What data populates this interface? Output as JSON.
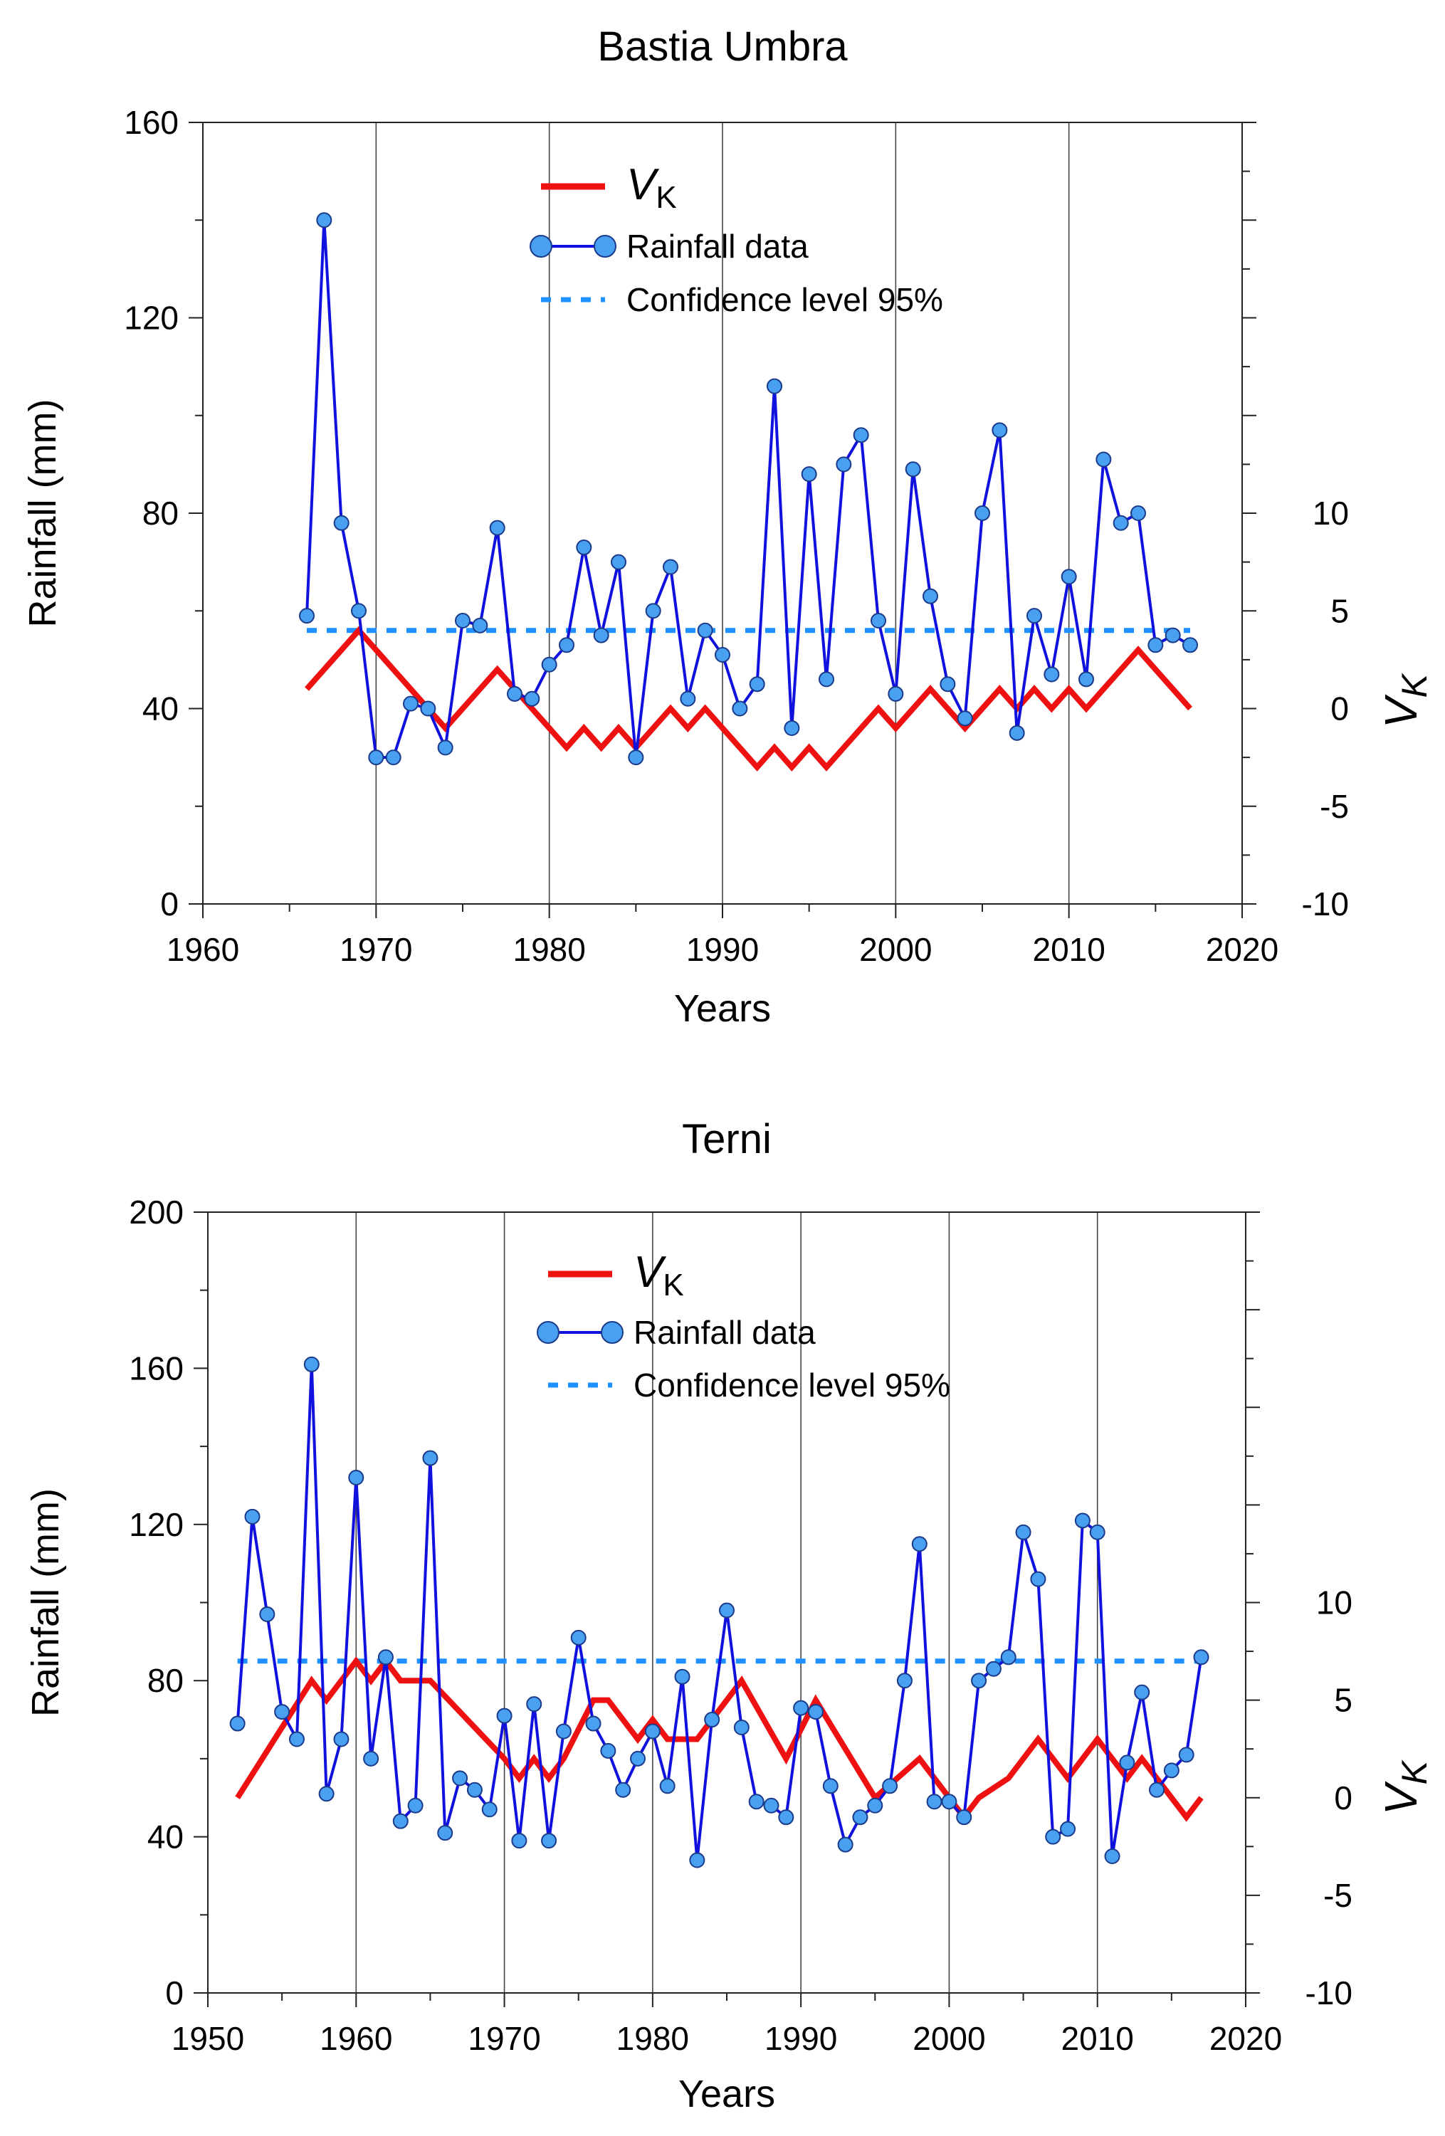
{
  "chart_data": [
    {
      "type": "line",
      "title": "Bastia Umbra",
      "xlabel": "Years",
      "ylabel": "Rainfall (mm)",
      "y2label": "V_K",
      "xlim": [
        1960,
        2020
      ],
      "ylim": [
        0,
        160
      ],
      "y2lim": [
        -10,
        30
      ],
      "xticks": [
        1960,
        1970,
        1980,
        1990,
        2000,
        2010,
        2020
      ],
      "yticks": [
        0,
        40,
        80,
        120,
        160
      ],
      "y2ticks": [
        -10,
        -5,
        0,
        5,
        10
      ],
      "legend": {
        "vk_main": "V",
        "vk_sub": "K",
        "rain": "Rainfall data",
        "conf": "Confidence level 95%",
        "position": "top-center"
      },
      "colors": {
        "rain": "#1111dd",
        "marker": "#4aa0f0",
        "vk": "#ee1111",
        "conf": "#1e90ff"
      },
      "confidence_level": 4,
      "rainfall": {
        "x": [
          1966,
          1967,
          1968,
          1969,
          1970,
          1971,
          1972,
          1973,
          1974,
          1975,
          1976,
          1977,
          1978,
          1979,
          1980,
          1981,
          1982,
          1983,
          1984,
          1985,
          1986,
          1987,
          1988,
          1989,
          1990,
          1991,
          1992,
          1993,
          1994,
          1995,
          1996,
          1997,
          1998,
          1999,
          2000,
          2001,
          2002,
          2003,
          2004,
          2005,
          2006,
          2007,
          2008,
          2009,
          2010,
          2011,
          2012,
          2013,
          2014,
          2015,
          2016,
          2017
        ],
        "y": [
          59,
          140,
          78,
          60,
          30,
          30,
          41,
          40,
          32,
          58,
          57,
          77,
          43,
          42,
          49,
          53,
          73,
          55,
          70,
          30,
          60,
          69,
          42,
          56,
          51,
          40,
          45,
          106,
          36,
          88,
          46,
          90,
          96,
          58,
          43,
          89,
          63,
          45,
          38,
          80,
          97,
          35,
          59,
          47,
          67,
          46,
          91,
          78,
          80,
          53,
          55,
          53
        ]
      },
      "vk": {
        "x": [
          1966,
          1969,
          1974,
          1977,
          1981,
          1982,
          1983,
          1984,
          1985,
          1987,
          1988,
          1989,
          1992,
          1993,
          1994,
          1995,
          1996,
          1999,
          2000,
          2002,
          2004,
          2006,
          2007,
          2008,
          2009,
          2010,
          2011,
          2014,
          2017
        ],
        "y": [
          1,
          4,
          -1,
          2,
          -2,
          -1,
          -2,
          -1,
          -2,
          0,
          -1,
          0,
          -3,
          -2,
          -3,
          -2,
          -3,
          0,
          -1,
          1,
          -1,
          1,
          0,
          1,
          0,
          1,
          0,
          3,
          0
        ]
      }
    },
    {
      "type": "line",
      "title": "Terni",
      "xlabel": "Years",
      "ylabel": "Rainfall (mm)",
      "y2label": "V_K",
      "xlim": [
        1950,
        2020
      ],
      "ylim": [
        0,
        200
      ],
      "y2lim": [
        -10,
        30
      ],
      "xticks": [
        1950,
        1960,
        1970,
        1980,
        1990,
        2000,
        2010,
        2020
      ],
      "yticks": [
        0,
        40,
        80,
        120,
        160,
        200
      ],
      "y2ticks": [
        -10,
        -5,
        0,
        5,
        10
      ],
      "legend": {
        "vk_main": "V",
        "vk_sub": "K",
        "rain": "Rainfall data",
        "conf": "Confidence level 95%",
        "position": "top-center"
      },
      "colors": {
        "rain": "#1111dd",
        "marker": "#4aa0f0",
        "vk": "#ee1111",
        "conf": "#1e90ff"
      },
      "confidence_level": 7,
      "rainfall": {
        "x": [
          1952,
          1953,
          1954,
          1955,
          1956,
          1957,
          1958,
          1959,
          1960,
          1961,
          1962,
          1963,
          1964,
          1965,
          1966,
          1967,
          1968,
          1969,
          1970,
          1971,
          1972,
          1973,
          1974,
          1975,
          1976,
          1977,
          1978,
          1979,
          1980,
          1981,
          1982,
          1983,
          1984,
          1985,
          1986,
          1987,
          1988,
          1989,
          1990,
          1991,
          1992,
          1993,
          1994,
          1995,
          1996,
          1997,
          1998,
          1999,
          2000,
          2001,
          2002,
          2003,
          2004,
          2005,
          2006,
          2007,
          2008,
          2009,
          2010,
          2011,
          2012,
          2013,
          2014,
          2015,
          2016,
          2017
        ],
        "y": [
          69,
          122,
          97,
          72,
          65,
          161,
          51,
          65,
          132,
          60,
          86,
          44,
          48,
          137,
          41,
          55,
          52,
          47,
          71,
          39,
          74,
          39,
          67,
          91,
          69,
          62,
          52,
          60,
          67,
          53,
          81,
          34,
          70,
          98,
          68,
          49,
          48,
          45,
          73,
          72,
          53,
          38,
          45,
          48,
          53,
          80,
          115,
          49,
          49,
          45,
          80,
          83,
          86,
          118,
          106,
          40,
          42,
          121,
          118,
          35,
          59,
          77,
          52,
          57,
          61,
          86
        ]
      },
      "vk": {
        "x": [
          1952,
          1957,
          1958,
          1960,
          1961,
          1962,
          1963,
          1965,
          1970,
          1971,
          1972,
          1973,
          1974,
          1976,
          1977,
          1979,
          1980,
          1981,
          1983,
          1986,
          1989,
          1991,
          1995,
          1998,
          2001,
          2002,
          2004,
          2006,
          2008,
          2010,
          2012,
          2013,
          2016,
          2017
        ],
        "y": [
          0,
          6,
          5,
          7,
          6,
          7,
          6,
          6,
          2,
          1,
          2,
          1,
          2,
          5,
          5,
          3,
          4,
          3,
          3,
          6,
          2,
          5,
          0,
          2,
          -1,
          0,
          1,
          3,
          1,
          3,
          1,
          2,
          -1,
          0
        ]
      }
    }
  ]
}
